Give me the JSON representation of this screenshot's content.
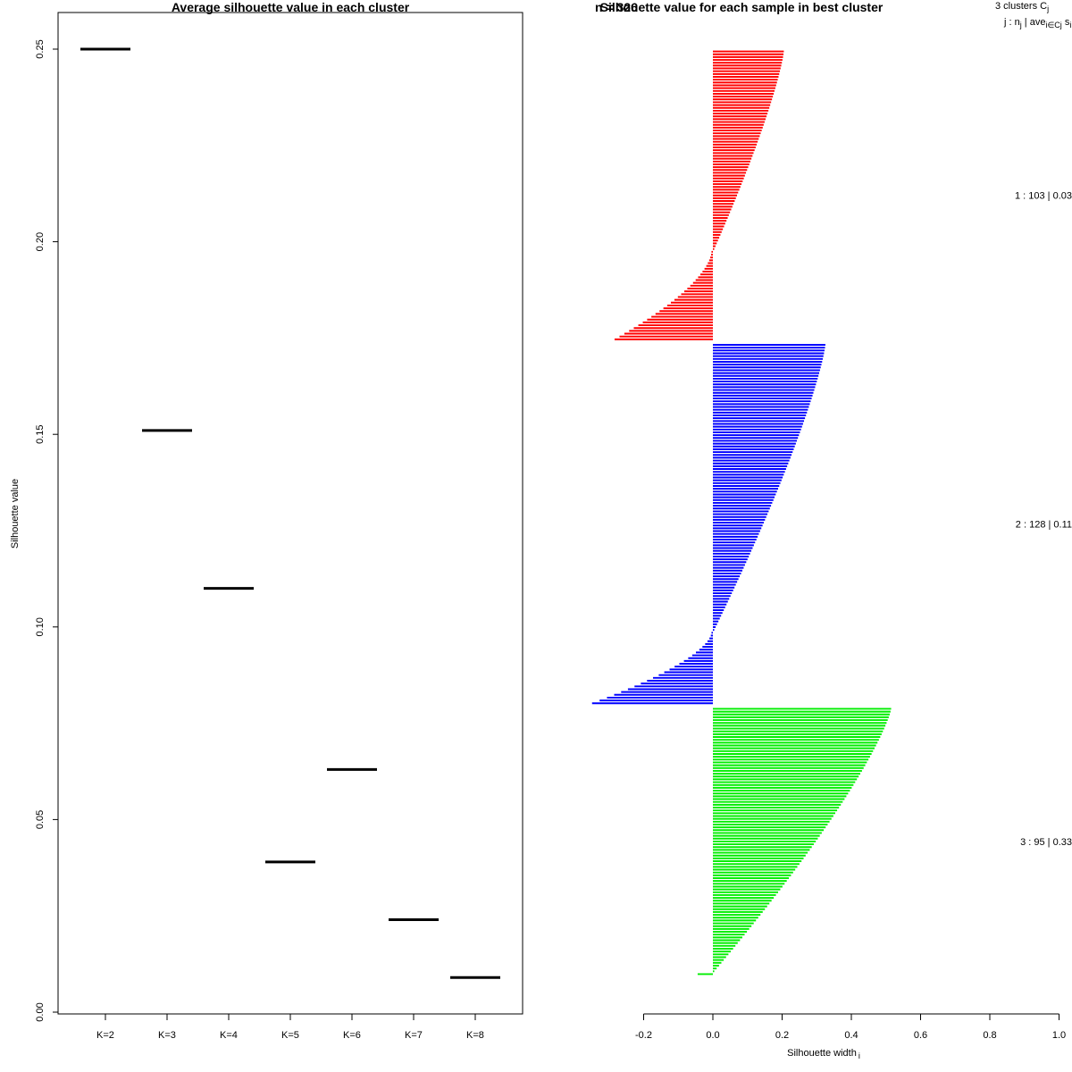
{
  "chart_data": [
    {
      "type": "line",
      "title": "Average silhouette value in each cluster",
      "xlabel": "",
      "ylabel": "Silhouette value",
      "categories": [
        "K=2",
        "K=3",
        "K=4",
        "K=5",
        "K=6",
        "K=7",
        "K=8"
      ],
      "values": [
        0.25,
        0.151,
        0.11,
        0.039,
        0.063,
        0.024,
        0.009
      ],
      "ylim": [
        0,
        0.26
      ],
      "yticks": [
        "0.00",
        "0.05",
        "0.10",
        "0.15",
        "0.20",
        "0.25"
      ],
      "grid": false
    },
    {
      "type": "bar",
      "title": "Silhouette value for each sample in best cluster",
      "title_overlap": "n = 326",
      "xlabel": "Silhouette width",
      "xlabel_sub": "i",
      "xlim": [
        -0.2,
        1.0
      ],
      "xticks": [
        "-0.2",
        "0.0",
        "0.2",
        "0.4",
        "0.6",
        "0.8",
        "1.0"
      ],
      "legend_header": {
        "line1": "3  clusters  C",
        "line1_sub": "j",
        "line2": "j :  n",
        "line2_sub": "j",
        "line2_mid": " | ave",
        "line2_sub2": "i∈Cj",
        "line2_tail": "  s",
        "line2_tail_sub": "i"
      },
      "clusters": [
        {
          "label": "1 :  103  |  0.03",
          "color": "#ff0000",
          "n": 103,
          "max": 0.205,
          "min": -0.28,
          "zero_frac": 0.69
        },
        {
          "label": "2 :  128  |  0.11",
          "color": "#0000ff",
          "n": 128,
          "max": 0.325,
          "min": -0.345,
          "zero_frac": 0.8
        },
        {
          "label": "3 :  95  |  0.33",
          "color": "#00ee00",
          "n": 95,
          "max": 0.515,
          "min": -0.04,
          "zero_frac": 0.99
        }
      ]
    }
  ]
}
